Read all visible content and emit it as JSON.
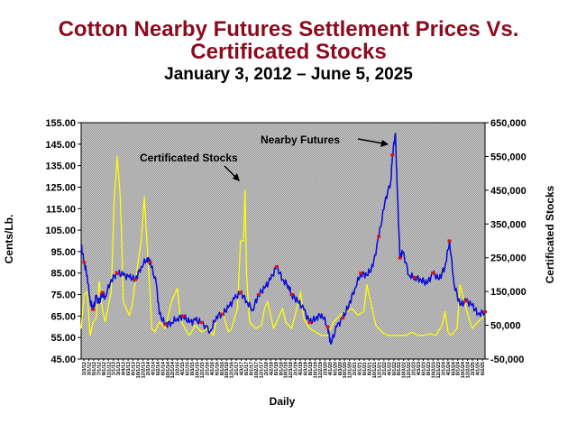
{
  "chart_data": {
    "type": "line",
    "title": "Cotton Nearby Futures Settlement Prices Vs. Certificated Stocks",
    "subtitle": "January 3, 2012 – June 5, 2025",
    "xlabel": "Daily",
    "ylabel_left": "Cents/Lb.",
    "ylabel_right": "Certificated Stocks",
    "y_left_ticks": [
      "155.00",
      "145.00",
      "135.00",
      "125.00",
      "115.00",
      "105.00",
      "95.00",
      "85.00",
      "75.00",
      "65.00",
      "55.00",
      "45.00"
    ],
    "y_right_ticks": [
      "650,000",
      "550,000",
      "450,000",
      "350,000",
      "250,000",
      "150,000",
      "50,000",
      "-50,000"
    ],
    "ylim_left": [
      45,
      155
    ],
    "ylim_right": [
      -50000,
      650000
    ],
    "x_ticks": [
      "1/3/12",
      "3/1/12",
      "5/1/12",
      "7/1/12",
      "9/1/12",
      "11/1/12",
      "1/1/13",
      "3/1/13",
      "4/4/13",
      "6/3/13",
      "8/1/13",
      "10/1/13",
      "12/2/13",
      "2/3/14",
      "4/1/14",
      "6/2/14",
      "8/1/14",
      "10/1/14",
      "12/1/14",
      "2/2/15",
      "4/1/15",
      "6/1/15",
      "8/3/15",
      "10/1/15",
      "12/1/15",
      "2/1/16",
      "4/1/16",
      "6/1/16",
      "8/1/16",
      "10/3/16",
      "12/1/16",
      "2/1/17",
      "4/3/17",
      "6/1/17",
      "8/1/17",
      "10/2/17",
      "12/1/17",
      "2/1/18",
      "4/2/18",
      "6/1/18",
      "8/1/18",
      "10/1/18",
      "12/3/18",
      "2/1/19",
      "4/1/19",
      "6/3/19",
      "8/1/19",
      "10/1/19",
      "12/2/19",
      "2/3/20",
      "4/1/20",
      "6/1/20",
      "8/3/20",
      "10/1/20",
      "12/1/20",
      "2/1/21",
      "4/1/21",
      "6/1/21",
      "8/2/21",
      "10/1/21",
      "12/1/21",
      "2/1/22",
      "4/1/22",
      "6/1/22",
      "8/1/22",
      "10/3/22",
      "12/1/22",
      "2/1/23",
      "4/3/23",
      "6/1/23",
      "8/1/23",
      "10/2/23",
      "12/1/23",
      "2/1/24",
      "4/1/24",
      "6/3/24",
      "8/1/24",
      "10/1/24",
      "12/2/24",
      "2/3/25",
      "4/1/25",
      "6/2/25"
    ],
    "grid": false,
    "legend": "annotations",
    "annotations": [
      "Nearby Futures",
      "Certificated Stocks"
    ],
    "series": [
      {
        "name": "Nearby Futures",
        "axis": "left",
        "color": "#1010d8",
        "x": [
          2012.0,
          2012.1,
          2012.2,
          2012.3,
          2012.4,
          2012.5,
          2012.6,
          2012.7,
          2012.8,
          2013.0,
          2013.2,
          2013.4,
          2013.6,
          2013.8,
          2014.0,
          2014.2,
          2014.3,
          2014.5,
          2014.6,
          2014.8,
          2015.0,
          2015.2,
          2015.4,
          2015.6,
          2015.8,
          2016.0,
          2016.3,
          2016.5,
          2016.7,
          2016.9,
          2017.1,
          2017.3,
          2017.5,
          2017.7,
          2017.9,
          2018.1,
          2018.3,
          2018.5,
          2018.7,
          2018.9,
          2019.0,
          2019.2,
          2019.4,
          2019.6,
          2019.8,
          2020.0,
          2020.2,
          2020.3,
          2020.5,
          2020.7,
          2020.9,
          2021.1,
          2021.3,
          2021.5,
          2021.7,
          2021.9,
          2022.1,
          2022.3,
          2022.35,
          2022.45,
          2022.5,
          2022.6,
          2022.7,
          2022.9,
          2023.1,
          2023.3,
          2023.5,
          2023.7,
          2023.9,
          2024.1,
          2024.25,
          2024.4,
          2024.6,
          2024.8,
          2025.0,
          2025.2,
          2025.43
        ],
        "y": [
          98,
          90,
          84,
          72,
          68,
          74,
          71,
          76,
          74,
          82,
          85,
          84,
          83,
          82,
          88,
          92,
          90,
          80,
          66,
          61,
          62,
          64,
          65,
          62,
          63,
          62,
          58,
          65,
          66,
          69,
          73,
          76,
          72,
          68,
          75,
          78,
          82,
          88,
          82,
          79,
          75,
          72,
          68,
          62,
          64,
          66,
          60,
          52,
          60,
          64,
          70,
          78,
          85,
          84,
          88,
          102,
          118,
          128,
          140,
          150,
          128,
          92,
          95,
          84,
          83,
          82,
          80,
          85,
          82,
          88,
          100,
          80,
          70,
          72,
          70,
          66,
          67
        ]
      },
      {
        "name": "Certificated Stocks",
        "axis": "right",
        "color": "#ffff00",
        "x": [
          2012.0,
          2012.1,
          2012.2,
          2012.25,
          2012.3,
          2012.4,
          2012.5,
          2012.6,
          2012.7,
          2012.8,
          2013.0,
          2013.1,
          2013.2,
          2013.3,
          2013.35,
          2013.4,
          2013.5,
          2013.6,
          2013.7,
          2013.8,
          2014.0,
          2014.1,
          2014.2,
          2014.3,
          2014.35,
          2014.45,
          2014.6,
          2014.8,
          2015.0,
          2015.2,
          2015.3,
          2015.45,
          2015.6,
          2015.8,
          2016.0,
          2016.2,
          2016.4,
          2016.5,
          2016.7,
          2016.9,
          2017.0,
          2017.2,
          2017.3,
          2017.4,
          2017.45,
          2017.5,
          2017.6,
          2017.8,
          2018.0,
          2018.1,
          2018.2,
          2018.3,
          2018.4,
          2018.5,
          2018.6,
          2018.7,
          2018.8,
          2019.0,
          2019.2,
          2019.3,
          2019.4,
          2019.6,
          2019.8,
          2020.0,
          2020.2,
          2020.4,
          2020.6,
          2020.8,
          2021.0,
          2021.2,
          2021.4,
          2021.5,
          2021.6,
          2021.8,
          2022.0,
          2022.2,
          2022.4,
          2022.6,
          2022.8,
          2023.0,
          2023.2,
          2023.4,
          2023.6,
          2023.8,
          2024.0,
          2024.1,
          2024.2,
          2024.3,
          2024.4,
          2024.5,
          2024.6,
          2024.8,
          2025.0,
          2025.2,
          2025.43
        ],
        "y": [
          40000,
          140000,
          150000,
          80000,
          20000,
          60000,
          70000,
          180000,
          100000,
          60000,
          150000,
          420000,
          550000,
          430000,
          300000,
          120000,
          100000,
          80000,
          110000,
          180000,
          300000,
          430000,
          280000,
          130000,
          40000,
          30000,
          60000,
          40000,
          120000,
          160000,
          70000,
          40000,
          20000,
          50000,
          30000,
          40000,
          20000,
          70000,
          90000,
          30000,
          40000,
          100000,
          300000,
          300000,
          450000,
          200000,
          60000,
          40000,
          50000,
          100000,
          120000,
          80000,
          40000,
          60000,
          80000,
          100000,
          60000,
          40000,
          110000,
          150000,
          70000,
          40000,
          30000,
          20000,
          20000,
          60000,
          80000,
          90000,
          100000,
          80000,
          90000,
          170000,
          130000,
          50000,
          30000,
          20000,
          20000,
          20000,
          20000,
          30000,
          20000,
          20000,
          25000,
          20000,
          50000,
          90000,
          30000,
          20000,
          30000,
          40000,
          170000,
          100000,
          40000,
          60000,
          80000
        ]
      }
    ]
  }
}
